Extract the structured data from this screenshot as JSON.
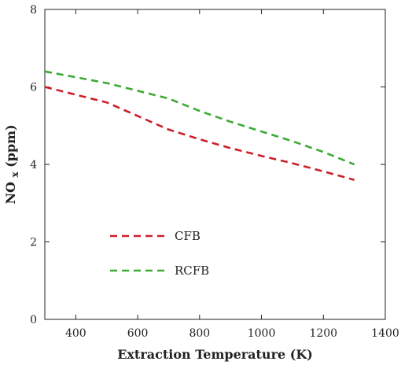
{
  "chart_data": {
    "type": "line",
    "xlabel": "Extraction Temperature  (K)",
    "ylabel": "NO",
    "ylabel_subscript": "x",
    "ylabel_unit": " (ppm)",
    "xlim": [
      300,
      1400
    ],
    "ylim": [
      0,
      8
    ],
    "x_ticks": [
      400,
      600,
      800,
      1000,
      1200,
      1400
    ],
    "y_ticks": [
      0,
      2,
      4,
      6,
      8
    ],
    "grid": false,
    "legend_position": "bottom-left",
    "series": [
      {
        "name": "CFB",
        "color": "#cc1f2a",
        "x": [
          300,
          400,
          500,
          600,
          700,
          800,
          900,
          1000,
          1100,
          1200,
          1300
        ],
        "y": [
          6.0,
          5.8,
          5.6,
          5.25,
          4.9,
          4.65,
          4.42,
          4.22,
          4.03,
          3.82,
          3.6
        ]
      },
      {
        "name": "RCFB",
        "color": "#3caa35",
        "x": [
          300,
          400,
          500,
          600,
          700,
          800,
          900,
          1000,
          1100,
          1200,
          1300
        ],
        "y": [
          6.4,
          6.25,
          6.1,
          5.9,
          5.7,
          5.38,
          5.1,
          4.85,
          4.6,
          4.32,
          4.0
        ]
      }
    ]
  }
}
